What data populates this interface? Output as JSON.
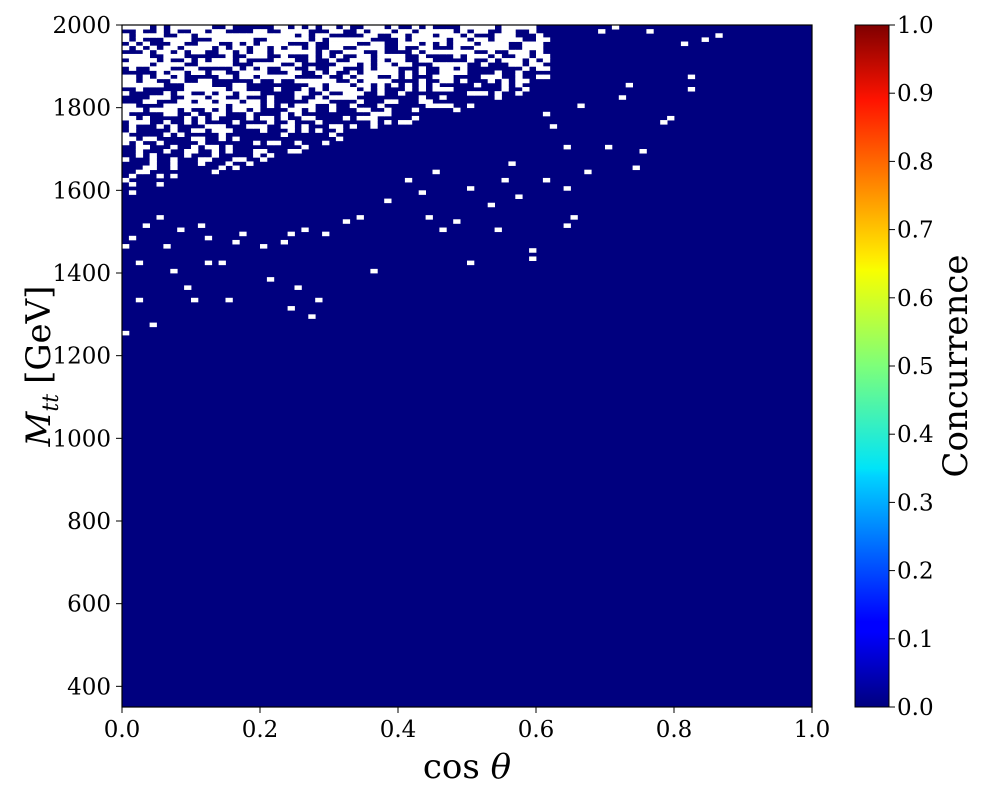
{
  "chart_data": {
    "type": "heatmap",
    "title": "",
    "xlabel": "cos θ",
    "ylabel": "M_tt [GeV]",
    "ylabel_parts": {
      "main": "M",
      "sub": "tt",
      "unit": "[GeV]"
    },
    "xlim": [
      0.0,
      1.0
    ],
    "ylim": [
      350,
      2000
    ],
    "x_ticks": [
      "0.0",
      "0.2",
      "0.4",
      "0.6",
      "0.8",
      "1.0"
    ],
    "y_ticks": [
      "400",
      "600",
      "800",
      "1000",
      "1200",
      "1400",
      "1600",
      "1800",
      "2000"
    ],
    "colorbar": {
      "label": "Concurrence",
      "colormap": "jet",
      "range": [
        0.0,
        1.0
      ],
      "ticks": [
        "0.0",
        "0.1",
        "0.2",
        "0.3",
        "0.4",
        "0.5",
        "0.6",
        "0.7",
        "0.8",
        "0.9",
        "1.0"
      ]
    },
    "grid": false,
    "fill_value": 0.0,
    "fill_color": "#00007f",
    "empty_color": "#ffffff",
    "cell_width": 0.01,
    "cell_height": 10,
    "empty_bins_note": "bins with no entries (white) concentrated at high M_tt and low cos θ",
    "empty_cells": [
      {
        "x": 0.0,
        "y": 1250
      },
      {
        "x": 0.02,
        "y": 1330
      },
      {
        "x": 0.04,
        "y": 1270
      },
      {
        "x": 0.02,
        "y": 1420
      },
      {
        "x": 0.07,
        "y": 1400
      },
      {
        "x": 0.09,
        "y": 1360
      },
      {
        "x": 0.1,
        "y": 1330
      },
      {
        "x": 0.12,
        "y": 1420
      },
      {
        "x": 0.15,
        "y": 1330
      },
      {
        "x": 0.14,
        "y": 1420
      },
      {
        "x": 0.21,
        "y": 1380
      },
      {
        "x": 0.24,
        "y": 1310
      },
      {
        "x": 0.25,
        "y": 1360
      },
      {
        "x": 0.27,
        "y": 1290
      },
      {
        "x": 0.28,
        "y": 1330
      },
      {
        "x": 0.36,
        "y": 1400
      },
      {
        "x": 0.5,
        "y": 1420
      },
      {
        "x": 0.59,
        "y": 1430
      },
      {
        "x": 0.59,
        "y": 1450
      },
      {
        "x": 0.0,
        "y": 1460
      },
      {
        "x": 0.01,
        "y": 1480
      },
      {
        "x": 0.03,
        "y": 1510
      },
      {
        "x": 0.06,
        "y": 1460
      },
      {
        "x": 0.05,
        "y": 1530
      },
      {
        "x": 0.08,
        "y": 1500
      },
      {
        "x": 0.11,
        "y": 1510
      },
      {
        "x": 0.12,
        "y": 1480
      },
      {
        "x": 0.16,
        "y": 1470
      },
      {
        "x": 0.17,
        "y": 1490
      },
      {
        "x": 0.2,
        "y": 1460
      },
      {
        "x": 0.23,
        "y": 1470
      },
      {
        "x": 0.24,
        "y": 1490
      },
      {
        "x": 0.26,
        "y": 1500
      },
      {
        "x": 0.29,
        "y": 1490
      },
      {
        "x": 0.32,
        "y": 1520
      },
      {
        "x": 0.34,
        "y": 1530
      },
      {
        "x": 0.46,
        "y": 1500
      },
      {
        "x": 0.48,
        "y": 1520
      },
      {
        "x": 0.44,
        "y": 1530
      },
      {
        "x": 0.64,
        "y": 1510
      },
      {
        "x": 0.65,
        "y": 1530
      },
      {
        "x": 0.53,
        "y": 1560
      },
      {
        "x": 0.57,
        "y": 1580
      },
      {
        "x": 0.5,
        "y": 1600
      },
      {
        "x": 0.61,
        "y": 1620
      },
      {
        "x": 0.64,
        "y": 1600
      },
      {
        "x": 0.67,
        "y": 1640
      },
      {
        "x": 0.74,
        "y": 1650
      },
      {
        "x": 0.75,
        "y": 1690
      },
      {
        "x": 0.7,
        "y": 1700
      },
      {
        "x": 0.64,
        "y": 1700
      },
      {
        "x": 0.78,
        "y": 1760
      },
      {
        "x": 0.79,
        "y": 1770
      },
      {
        "x": 0.82,
        "y": 1840
      },
      {
        "x": 0.82,
        "y": 1870
      },
      {
        "x": 0.81,
        "y": 1950
      },
      {
        "x": 0.84,
        "y": 1960
      },
      {
        "x": 0.86,
        "y": 1970
      },
      {
        "x": 0.76,
        "y": 1980
      },
      {
        "x": 0.71,
        "y": 1990
      },
      {
        "x": 0.69,
        "y": 1980
      },
      {
        "x": 0.73,
        "y": 1850
      },
      {
        "x": 0.72,
        "y": 1820
      },
      {
        "x": 0.66,
        "y": 1800
      },
      {
        "x": 0.62,
        "y": 1750
      },
      {
        "x": 0.61,
        "y": 1780
      },
      {
        "x": 0.56,
        "y": 1660
      },
      {
        "x": 0.45,
        "y": 1640
      },
      {
        "x": 0.41,
        "y": 1620
      },
      {
        "x": 0.43,
        "y": 1590
      },
      {
        "x": 0.38,
        "y": 1570
      },
      {
        "x": 0.54,
        "y": 1500
      },
      {
        "x": 0.55,
        "y": 1620
      }
    ],
    "dense_empty_region": {
      "x_range": [
        0.0,
        0.62
      ],
      "y_lower_at_x0": 1580,
      "y_lower_at_x062": 1850,
      "fill_fraction": 0.55
    }
  }
}
